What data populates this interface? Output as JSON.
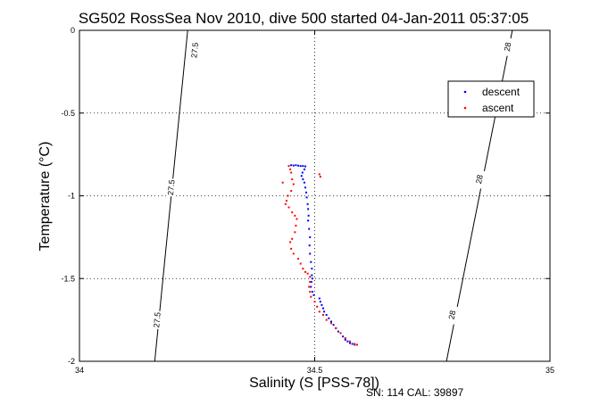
{
  "chart_data": {
    "type": "scatter",
    "title": "SG502 RossSea Nov 2010, dive 500 started 04-Jan-2011 05:37:05",
    "xlabel": "Salinity (S [PSS-78])",
    "ylabel": "Temperature (°C)",
    "xlim": [
      34,
      35
    ],
    "ylim": [
      -2,
      0
    ],
    "xticks": [
      34,
      34.5,
      35
    ],
    "xtick_labels": [
      "34",
      "34.5",
      "35"
    ],
    "yticks": [
      0,
      -0.5,
      -1,
      -1.5,
      -2
    ],
    "ytick_labels": [
      "0",
      "-0.5",
      "-1",
      "-1.5",
      "-2"
    ],
    "grid": true,
    "legend_position": "top-right",
    "footer": "SN: 114  CAL: 39897",
    "contours": [
      {
        "level": "27.5",
        "points": [
          [
            34.23,
            0
          ],
          [
            34.16,
            -2
          ]
        ],
        "label_positions": [
          [
            34.245,
            -0.12
          ],
          [
            34.195,
            -0.95
          ],
          [
            34.165,
            -1.75
          ]
        ]
      },
      {
        "level": "28",
        "points": [
          [
            34.92,
            0
          ],
          [
            34.78,
            -2
          ]
        ],
        "label_positions": [
          [
            34.91,
            -0.1
          ],
          [
            34.85,
            -0.9
          ],
          [
            34.792,
            -1.72
          ]
        ]
      }
    ],
    "series": [
      {
        "name": "descent",
        "color": "#0000ff",
        "points": [
          [
            34.45,
            -0.815
          ],
          [
            34.455,
            -0.817
          ],
          [
            34.46,
            -0.815
          ],
          [
            34.465,
            -0.818
          ],
          [
            34.47,
            -0.82
          ],
          [
            34.475,
            -0.82
          ],
          [
            34.48,
            -0.822
          ],
          [
            34.478,
            -0.84
          ],
          [
            34.474,
            -0.86
          ],
          [
            34.472,
            -0.88
          ],
          [
            34.475,
            -0.9
          ],
          [
            34.478,
            -0.92
          ],
          [
            34.48,
            -0.95
          ],
          [
            34.482,
            -0.98
          ],
          [
            34.483,
            -1.01
          ],
          [
            34.485,
            -1.05
          ],
          [
            34.486,
            -1.08
          ],
          [
            34.487,
            -1.12
          ],
          [
            34.486,
            -1.15
          ],
          [
            34.488,
            -1.2
          ],
          [
            34.49,
            -1.25
          ],
          [
            34.489,
            -1.3
          ],
          [
            34.49,
            -1.35
          ],
          [
            34.492,
            -1.4
          ],
          [
            34.494,
            -1.44
          ],
          [
            34.494,
            -1.48
          ],
          [
            34.495,
            -1.5
          ],
          [
            34.493,
            -1.52
          ],
          [
            34.492,
            -1.55
          ],
          [
            34.495,
            -1.58
          ],
          [
            34.498,
            -1.6
          ],
          [
            34.51,
            -1.62
          ],
          [
            34.512,
            -1.64
          ],
          [
            34.515,
            -1.66
          ],
          [
            34.518,
            -1.68
          ],
          [
            34.52,
            -1.7
          ],
          [
            34.525,
            -1.72
          ],
          [
            34.53,
            -1.74
          ],
          [
            34.535,
            -1.76
          ],
          [
            34.54,
            -1.78
          ],
          [
            34.545,
            -1.8
          ],
          [
            34.55,
            -1.82
          ],
          [
            34.555,
            -1.83
          ],
          [
            34.56,
            -1.85
          ],
          [
            34.565,
            -1.87
          ],
          [
            34.57,
            -1.88
          ],
          [
            34.575,
            -1.89
          ],
          [
            34.58,
            -1.895
          ],
          [
            34.585,
            -1.9
          ]
        ]
      },
      {
        "name": "ascent",
        "color": "#ff0000",
        "points": [
          [
            34.445,
            -0.82
          ],
          [
            34.448,
            -0.84
          ],
          [
            34.45,
            -0.86
          ],
          [
            34.452,
            -0.9
          ],
          [
            34.455,
            -0.93
          ],
          [
            34.45,
            -0.97
          ],
          [
            34.443,
            -1.0
          ],
          [
            34.44,
            -1.03
          ],
          [
            34.438,
            -1.05
          ],
          [
            34.445,
            -1.07
          ],
          [
            34.452,
            -1.1
          ],
          [
            34.458,
            -1.12
          ],
          [
            34.462,
            -1.14
          ],
          [
            34.46,
            -1.18
          ],
          [
            34.458,
            -1.22
          ],
          [
            34.452,
            -1.26
          ],
          [
            34.448,
            -1.28
          ],
          [
            34.45,
            -1.32
          ],
          [
            34.455,
            -1.35
          ],
          [
            34.465,
            -1.38
          ],
          [
            34.47,
            -1.41
          ],
          [
            34.475,
            -1.44
          ],
          [
            34.48,
            -1.46
          ],
          [
            34.485,
            -1.47
          ],
          [
            34.49,
            -1.49
          ],
          [
            34.49,
            -1.52
          ],
          [
            34.488,
            -1.55
          ],
          [
            34.49,
            -1.58
          ],
          [
            34.492,
            -1.61
          ],
          [
            34.5,
            -1.64
          ],
          [
            34.505,
            -1.67
          ],
          [
            34.51,
            -1.7
          ],
          [
            34.518,
            -1.72
          ],
          [
            34.525,
            -1.75
          ],
          [
            34.535,
            -1.77
          ],
          [
            34.545,
            -1.8
          ],
          [
            34.555,
            -1.83
          ],
          [
            34.565,
            -1.86
          ],
          [
            34.575,
            -1.88
          ],
          [
            34.585,
            -1.895
          ],
          [
            34.59,
            -1.9
          ],
          [
            34.51,
            -0.87
          ],
          [
            34.512,
            -0.885
          ],
          [
            34.432,
            -0.92
          ]
        ]
      }
    ]
  }
}
